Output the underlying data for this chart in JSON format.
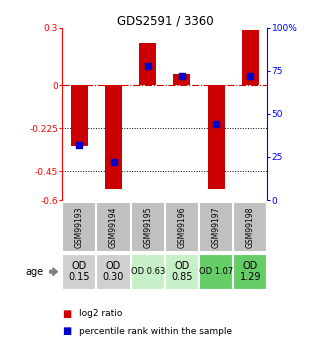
{
  "title": "GDS2591 / 3360",
  "samples": [
    "GSM99193",
    "GSM99194",
    "GSM99195",
    "GSM99196",
    "GSM99197",
    "GSM99198"
  ],
  "log2_ratios": [
    -0.32,
    -0.54,
    0.22,
    0.06,
    -0.54,
    0.29
  ],
  "percentile_ranks": [
    32,
    22,
    78,
    72,
    44,
    72
  ],
  "ylim_left": [
    -0.6,
    0.3
  ],
  "ylim_right": [
    0,
    100
  ],
  "yticks_left": [
    0.3,
    0,
    -0.225,
    -0.45,
    -0.6
  ],
  "yticks_right": [
    100,
    75,
    50,
    25,
    0
  ],
  "bar_color": "#cc0000",
  "dot_color": "#0000cc",
  "bar_width": 0.5,
  "dot_size": 18,
  "age_labels": [
    "OD\n0.15",
    "OD\n0.30",
    "OD 0.63",
    "OD\n0.85",
    "OD 1.07",
    "OD\n1.29"
  ],
  "age_bg_colors": [
    "#d0d0d0",
    "#d0d0d0",
    "#c8f0c8",
    "#c8f0c8",
    "#66cc66",
    "#66cc66"
  ],
  "age_font_sizes": [
    7,
    7,
    6,
    7,
    6,
    7
  ],
  "sample_bg_color": "#c0c0c0",
  "legend_bar_label": "log2 ratio",
  "legend_dot_label": "percentile rank within the sample",
  "background_color": "#ffffff"
}
